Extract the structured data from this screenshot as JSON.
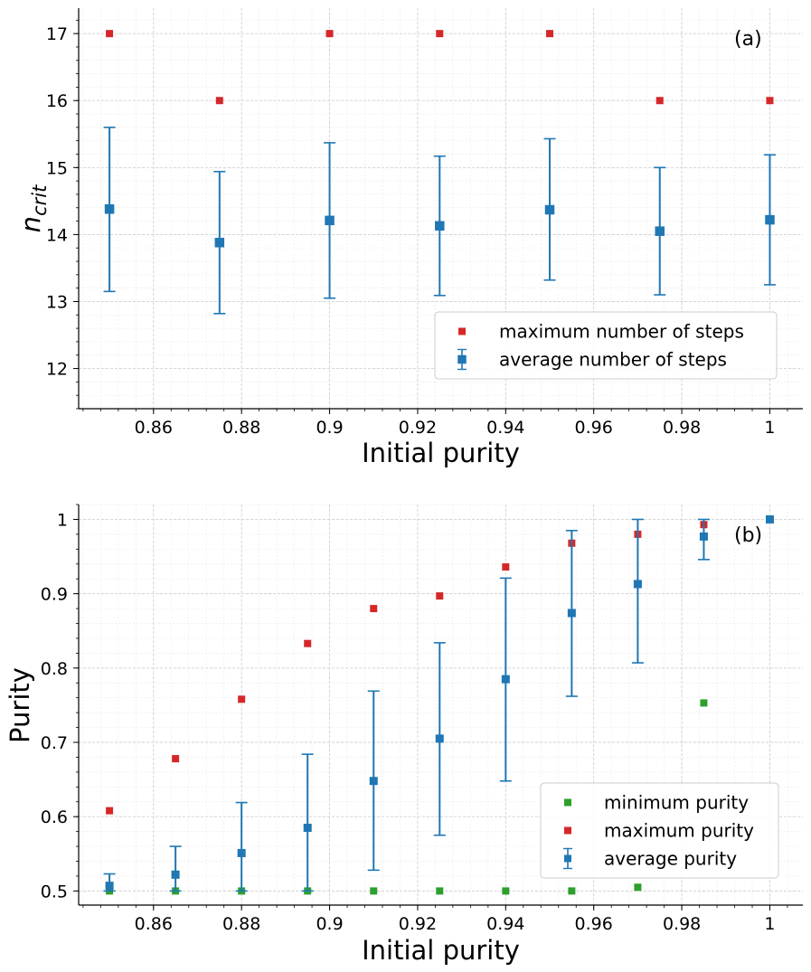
{
  "colors": {
    "avg": "#1f77b4",
    "max": "#d62728",
    "min": "#2ca02c"
  },
  "chart_data": [
    {
      "type": "scatter",
      "panel_tag": "(a)",
      "xlabel": "Initial purity",
      "ylabel_main": "n",
      "ylabel_sub": "crit",
      "xlim": [
        0.843,
        1.0075
      ],
      "ylim": [
        11.4,
        17.38
      ],
      "xticks": [
        0.86,
        0.88,
        0.9,
        0.92,
        0.94,
        0.96,
        0.98,
        1
      ],
      "xtick_labels": [
        "0.86",
        "0.88",
        "0.9",
        "0.92",
        "0.94",
        "0.96",
        "0.98",
        "1"
      ],
      "yticks": [
        12,
        13,
        14,
        15,
        16,
        17
      ],
      "ytick_labels": [
        "12",
        "13",
        "14",
        "15",
        "16",
        "17"
      ],
      "x": [
        0.85,
        0.875,
        0.9,
        0.925,
        0.95,
        0.975,
        1.0
      ],
      "series": [
        {
          "name": "maximum number of steps",
          "kind": "max",
          "values": [
            17,
            16,
            17,
            17,
            17,
            16,
            16
          ]
        },
        {
          "name": "average number of steps",
          "kind": "avg",
          "values": [
            14.38,
            13.88,
            14.21,
            14.13,
            14.37,
            14.05,
            14.22
          ],
          "yerr_low": [
            13.15,
            12.82,
            13.05,
            13.09,
            13.32,
            13.1,
            13.25
          ],
          "yerr_high": [
            15.6,
            14.94,
            15.37,
            15.17,
            15.43,
            15.0,
            15.19
          ]
        }
      ],
      "legend": [
        "maximum number of steps",
        "average number of steps"
      ],
      "legend_position": "lower-right",
      "grid": true
    },
    {
      "type": "scatter",
      "panel_tag": "(b)",
      "xlabel": "Initial purity",
      "ylabel_main": "Purity",
      "ylabel_sub": "",
      "xlim": [
        0.843,
        1.0075
      ],
      "ylim": [
        0.481,
        1.02
      ],
      "xticks": [
        0.86,
        0.88,
        0.9,
        0.92,
        0.94,
        0.96,
        0.98,
        1
      ],
      "xtick_labels": [
        "0.86",
        "0.88",
        "0.9",
        "0.92",
        "0.94",
        "0.96",
        "0.98",
        "1"
      ],
      "yticks": [
        0.5,
        0.6,
        0.7,
        0.8,
        0.9,
        1.0
      ],
      "ytick_labels": [
        "0.5",
        "0.6",
        "0.7",
        "0.8",
        "0.9",
        "1"
      ],
      "x": [
        0.85,
        0.865,
        0.88,
        0.895,
        0.91,
        0.925,
        0.94,
        0.955,
        0.97,
        0.985,
        1.0
      ],
      "series": [
        {
          "name": "minimum purity",
          "kind": "min",
          "values": [
            0.5,
            0.5,
            0.5,
            0.5,
            0.5,
            0.5,
            0.5,
            0.5,
            0.505,
            0.753,
            1.0
          ]
        },
        {
          "name": "maximum purity",
          "kind": "max",
          "values": [
            0.608,
            0.678,
            0.758,
            0.833,
            0.88,
            0.897,
            0.936,
            0.968,
            0.98,
            0.993,
            1.0
          ]
        },
        {
          "name": "average purity",
          "kind": "avg",
          "values": [
            0.507,
            0.522,
            0.551,
            0.585,
            0.648,
            0.705,
            0.785,
            0.874,
            0.913,
            0.977,
            1.0
          ],
          "yerr_low": [
            0.5,
            0.5,
            0.5,
            0.5,
            0.528,
            0.575,
            0.648,
            0.762,
            0.807,
            0.946,
            1.0
          ],
          "yerr_high": [
            0.523,
            0.56,
            0.619,
            0.684,
            0.769,
            0.834,
            0.921,
            0.985,
            1.0,
            1.0,
            1.0
          ]
        }
      ],
      "legend": [
        "minimum purity",
        "maximum purity",
        "average purity"
      ],
      "legend_position": "lower-right",
      "grid": true
    }
  ]
}
